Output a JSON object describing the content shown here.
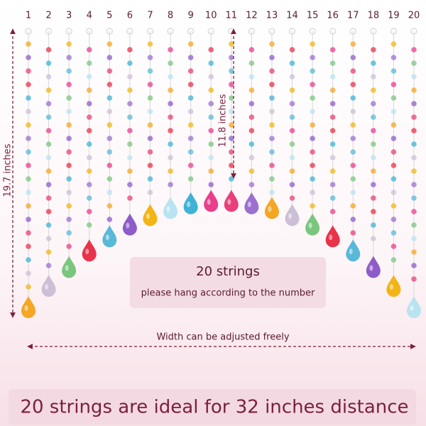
{
  "string_numbers": [
    1,
    2,
    3,
    4,
    5,
    6,
    7,
    8,
    9,
    10,
    11,
    12,
    13,
    14,
    15,
    16,
    17,
    18,
    19,
    20
  ],
  "long_length": "19.7 inches",
  "short_length": "11.8 inches",
  "info_box": {
    "title": "20 strings",
    "subtitle": "please hang according to the number"
  },
  "width_note": "Width can be adjusted freely",
  "banner": "20 strings are ideal for 32 inches distance"
}
